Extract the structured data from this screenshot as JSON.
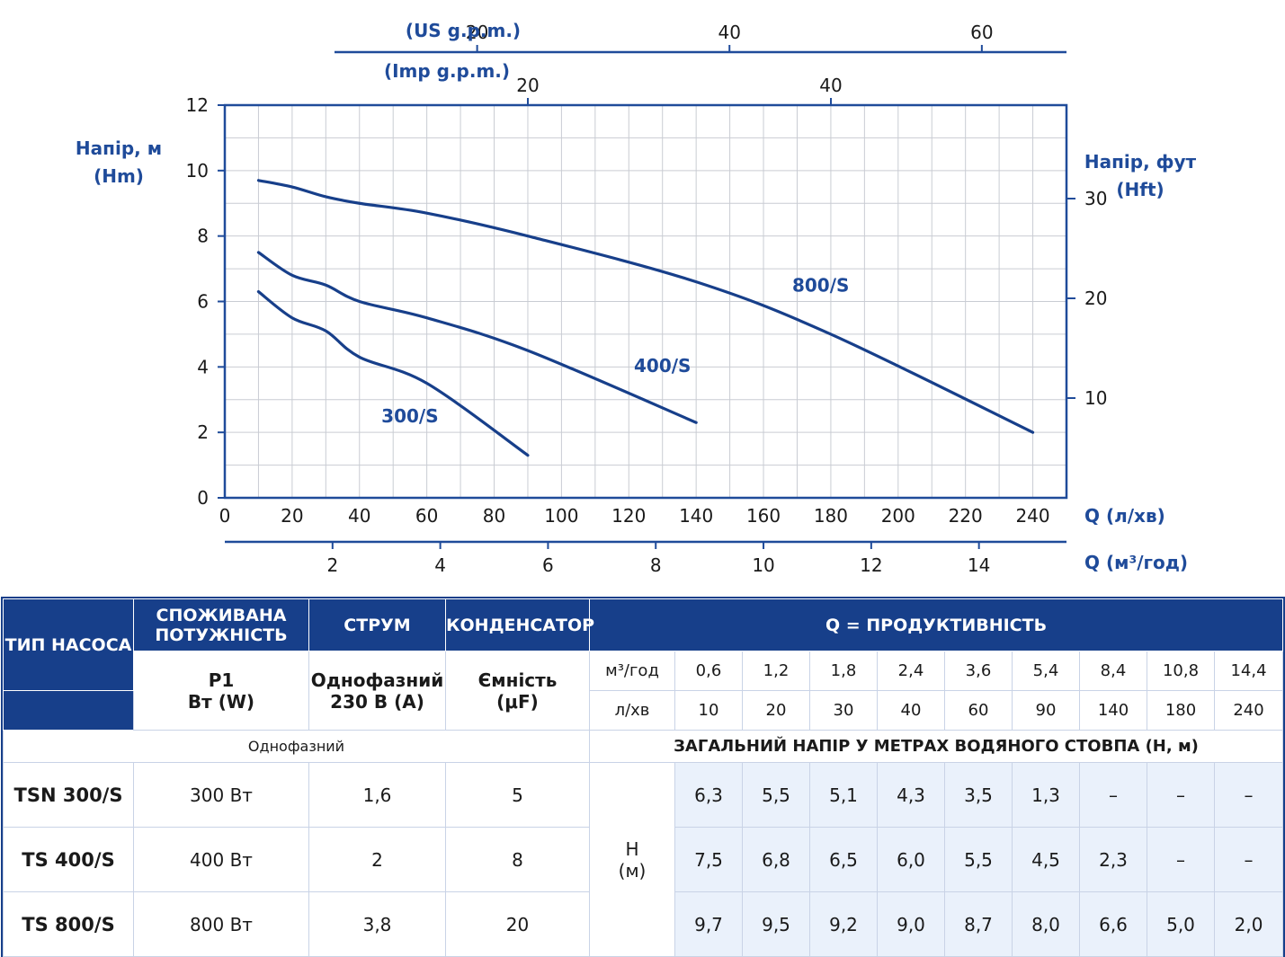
{
  "chart_data": {
    "type": "line",
    "xlabel": "Q (л/хв)",
    "ylabel_left": "Напір, м",
    "ylabel_left_unit": "(Hm)",
    "ylabel_right": "Напір, фут",
    "ylabel_right_unit": "(Hft)",
    "xlim": [
      0,
      250
    ],
    "ylim": [
      0,
      12
    ],
    "x_ticks": [
      0,
      20,
      40,
      60,
      80,
      100,
      120,
      140,
      160,
      180,
      200,
      220,
      240
    ],
    "y_ticks": [
      0,
      2,
      4,
      6,
      8,
      10,
      12
    ],
    "grid": true,
    "secondary_axes": {
      "top_us": {
        "label": "(US g.p.m.)",
        "ticks": [
          20,
          40,
          60
        ]
      },
      "top_imp": {
        "label": "(Imp g.p.m.)",
        "ticks": [
          20,
          40
        ]
      },
      "bottom_m3h": {
        "label": "Q (м³/год)",
        "ticks": [
          2,
          4,
          6,
          8,
          10,
          12,
          14
        ]
      },
      "right_ft": {
        "ticks": [
          10,
          20,
          30
        ]
      }
    },
    "series": [
      {
        "name": "300/S",
        "x": [
          10,
          20,
          30,
          40,
          60,
          90
        ],
        "y": [
          6.3,
          5.5,
          5.1,
          4.3,
          3.5,
          1.3
        ]
      },
      {
        "name": "400/S",
        "x": [
          10,
          20,
          30,
          40,
          60,
          90,
          140
        ],
        "y": [
          7.5,
          6.8,
          6.5,
          6.0,
          5.5,
          4.5,
          2.3
        ]
      },
      {
        "name": "800/S",
        "x": [
          10,
          20,
          30,
          40,
          60,
          90,
          140,
          180,
          240
        ],
        "y": [
          9.7,
          9.5,
          9.2,
          9.0,
          8.7,
          8.0,
          6.6,
          5.0,
          2.0
        ]
      }
    ],
    "colors": {
      "curve": "#173f8a",
      "axis": "#1f4b9a",
      "grid": "#c9ccd3"
    }
  },
  "table": {
    "header": {
      "pump_type": "ТИП НАСОСА",
      "power": "СПОЖИВАНА ПОТУЖНІСТЬ",
      "power_sub_1": "P1",
      "power_sub_2": "Вт (W)",
      "current": "СТРУМ",
      "current_sub_1": "Однофазний",
      "current_sub_2": "230 В (А)",
      "capacitor": "КОНДЕНСАТОР",
      "capacitor_sub_1": "Ємність",
      "capacitor_sub_2": "(μF)",
      "flow": "Q = ПРОДУКТИВНІСТЬ",
      "unit_m3h": "м³/год",
      "unit_lmin": "л/хв",
      "flow_m3h": [
        "0,6",
        "1,2",
        "1,8",
        "2,4",
        "3,6",
        "5,4",
        "8,4",
        "10,8",
        "14,4"
      ],
      "flow_lmin": [
        "10",
        "20",
        "30",
        "40",
        "60",
        "90",
        "140",
        "180",
        "240"
      ],
      "single_phase": "Однофазний",
      "head_title": "ЗАГАЛЬНИЙ НАПІР У МЕТРАХ ВОДЯНОГО СТОВПА (Н, м)",
      "h_label_1": "Н",
      "h_label_2": "(м)"
    },
    "rows": [
      {
        "model": "TSN 300/S",
        "power": "300 Вт",
        "current": "1,6",
        "capacitor": "5",
        "heads": [
          "6,3",
          "5,5",
          "5,1",
          "4,3",
          "3,5",
          "1,3",
          "–",
          "–",
          "–"
        ]
      },
      {
        "model": "TS 400/S",
        "power": "400 Вт",
        "current": "2",
        "capacitor": "8",
        "heads": [
          "7,5",
          "6,8",
          "6,5",
          "6,0",
          "5,5",
          "4,5",
          "2,3",
          "–",
          "–"
        ]
      },
      {
        "model": "TS 800/S",
        "power": "800 Вт",
        "current": "3,8",
        "capacitor": "20",
        "heads": [
          "9,7",
          "9,5",
          "9,2",
          "9,0",
          "8,7",
          "8,0",
          "6,6",
          "5,0",
          "2,0"
        ]
      }
    ]
  }
}
